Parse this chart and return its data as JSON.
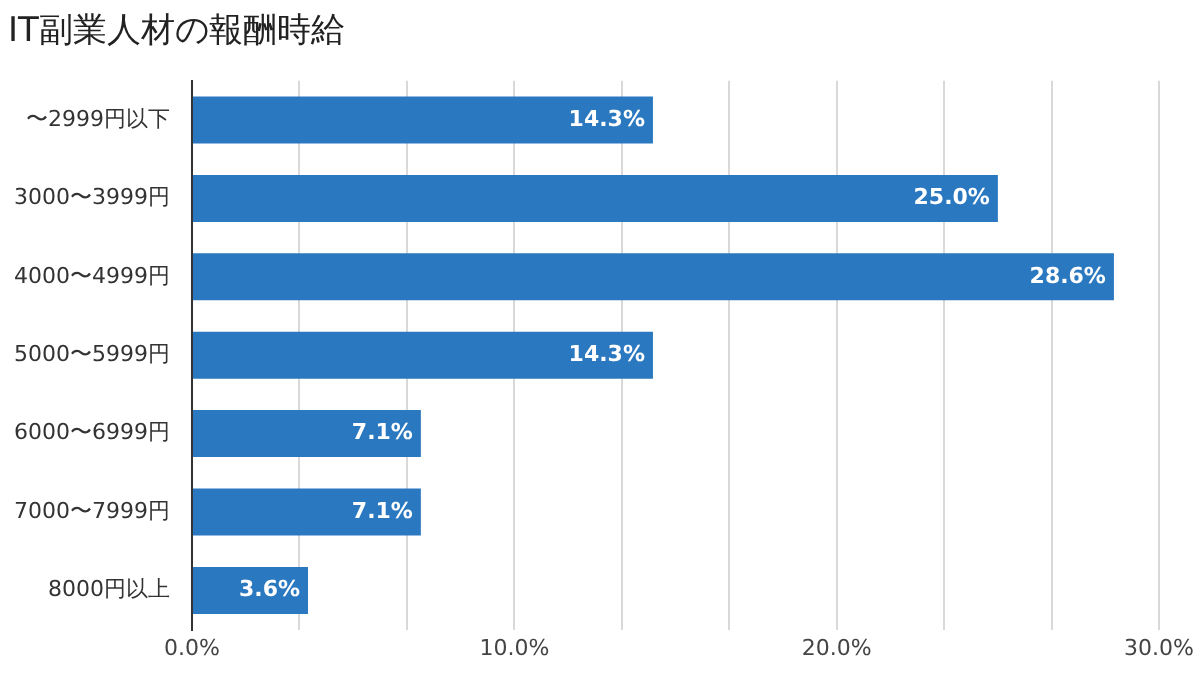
{
  "chart_data": {
    "type": "bar",
    "orientation": "horizontal",
    "title": "IT副業人材の報酬時給",
    "categories": [
      "〜2999円以下",
      "3000〜3999円",
      "4000〜4999円",
      "5000〜5999円",
      "6000〜6999円",
      "7000〜7999円",
      "8000円以上"
    ],
    "values": [
      14.3,
      25.0,
      28.6,
      14.3,
      7.1,
      7.1,
      3.6
    ],
    "value_labels": [
      "14.3%",
      "25.0%",
      "28.6%",
      "14.3%",
      "7.1%",
      "7.1%",
      "3.6%"
    ],
    "color": "#2a78bf",
    "xlim": [
      0,
      30
    ],
    "xticks": [
      {
        "value": 0,
        "label": "0.0%"
      },
      {
        "value": 3.333,
        "label": null
      },
      {
        "value": 6.667,
        "label": null
      },
      {
        "value": 10,
        "label": "10.0%"
      },
      {
        "value": 13.333,
        "label": null
      },
      {
        "value": 16.667,
        "label": null
      },
      {
        "value": 20,
        "label": "20.0%"
      },
      {
        "value": 23.333,
        "label": null
      },
      {
        "value": 26.667,
        "label": null
      },
      {
        "value": 30,
        "label": "30.0%"
      }
    ],
    "grid": "x"
  }
}
